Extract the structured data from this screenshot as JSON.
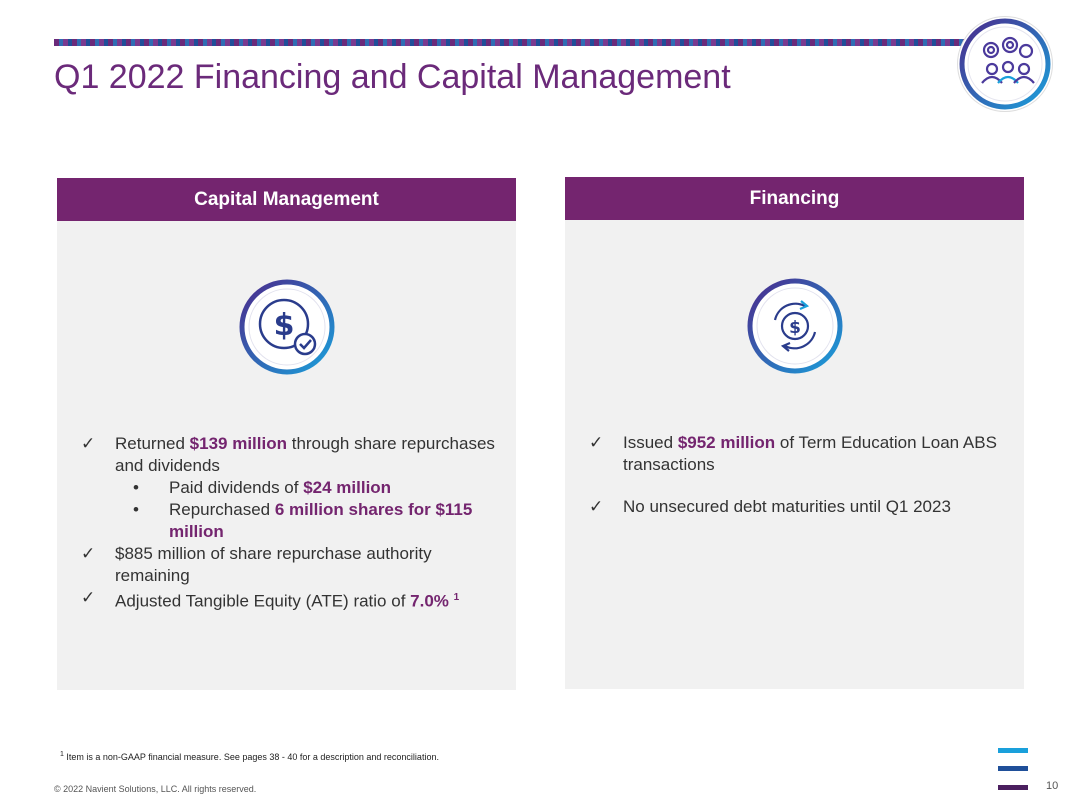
{
  "title": "Q1 2022 Financing and Capital Management",
  "left_panel": {
    "heading": "Capital Management",
    "icon": "dollar-check-icon",
    "items": [
      {
        "pre": "Returned ",
        "hl": "$139 million",
        "post": " through share repurchases and dividends"
      },
      {
        "pre": "Paid dividends of ",
        "hl": "$24 million",
        "post": ""
      },
      {
        "pre": "Repurchased ",
        "hl": "6 million shares for $115 million",
        "post": ""
      },
      {
        "pre": "$885 million of share repurchase authority remaining",
        "hl": "",
        "post": ""
      },
      {
        "pre": "Adjusted Tangible Equity (ATE) ratio of ",
        "hl": "7.0%",
        "sup": "1"
      }
    ]
  },
  "right_panel": {
    "heading": "Financing",
    "icon": "dollar-cycle-icon",
    "items": [
      {
        "pre": "Issued ",
        "hl": "$952 million",
        "post": " of Term Education Loan ABS transactions"
      },
      {
        "pre": "No unsecured debt maturities until Q1 2023",
        "hl": "",
        "post": ""
      }
    ]
  },
  "marks": {
    "check": "✓",
    "bullet": "•"
  },
  "footnote": {
    "sup": "1",
    "text": " Item is a non-GAAP financial measure.  See pages 38 - 40  for a description and reconciliation."
  },
  "copyright": "© 2022 Navient Solutions, LLC. All rights reserved.",
  "page_number": "10",
  "colors": {
    "brand_purple": "#74256f",
    "accent_blue": "#1aa0db",
    "dark_blue": "#1f4f99"
  }
}
